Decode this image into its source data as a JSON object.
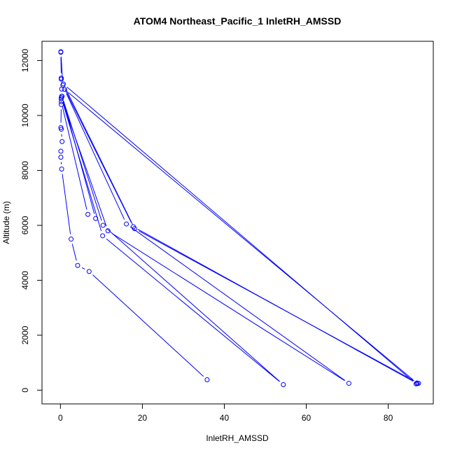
{
  "chart_data": {
    "type": "line",
    "title": "ATOM4 Northeast_Pacific_1 InletRH_AMSSD",
    "xlabel": "InletRH_AMSSD",
    "ylabel": "Altitude (m)",
    "xlim": [
      -4.5,
      91
    ],
    "ylim": [
      -500,
      12700
    ],
    "xticks": [
      0,
      20,
      40,
      60,
      80
    ],
    "yticks": [
      0,
      2000,
      4000,
      6000,
      8000,
      10000,
      12000
    ],
    "grid": false,
    "legend": "none",
    "colors": {
      "series": "#0000ff",
      "frame": "#000000"
    },
    "series": [
      {
        "points": [
          [
            35.8,
            380
          ],
          [
            7.0,
            4320
          ],
          [
            4.2,
            4540
          ],
          [
            2.6,
            5500
          ],
          [
            0.3,
            8050
          ],
          [
            0.1,
            8480
          ],
          [
            0.1,
            8700
          ],
          [
            0.4,
            9050
          ],
          [
            0.2,
            9500
          ],
          [
            0.1,
            9560
          ],
          [
            0.2,
            10400
          ],
          [
            0.2,
            10600
          ],
          [
            0.3,
            10700
          ],
          [
            0.3,
            10960
          ],
          [
            0.2,
            11320
          ],
          [
            0.2,
            11360
          ],
          [
            0.1,
            12300
          ],
          [
            0.1,
            12320
          ],
          [
            0.6,
            11100
          ],
          [
            17.8,
            5950
          ],
          [
            87.1,
            240
          ],
          [
            86.8,
            230
          ],
          [
            0.7,
            11150
          ],
          [
            18.1,
            5880
          ],
          [
            87.4,
            250
          ],
          [
            87.0,
            260
          ],
          [
            1.0,
            10950
          ],
          [
            16.1,
            6050
          ],
          [
            70.4,
            250
          ],
          [
            11.6,
            5800
          ],
          [
            0.2,
            10650
          ],
          [
            10.3,
            5620
          ],
          [
            54.4,
            200
          ],
          [
            10.4,
            6000
          ],
          [
            0.4,
            10700
          ],
          [
            8.6,
            6250
          ],
          [
            6.7,
            6400
          ],
          [
            0.2,
            10500
          ]
        ]
      }
    ]
  }
}
